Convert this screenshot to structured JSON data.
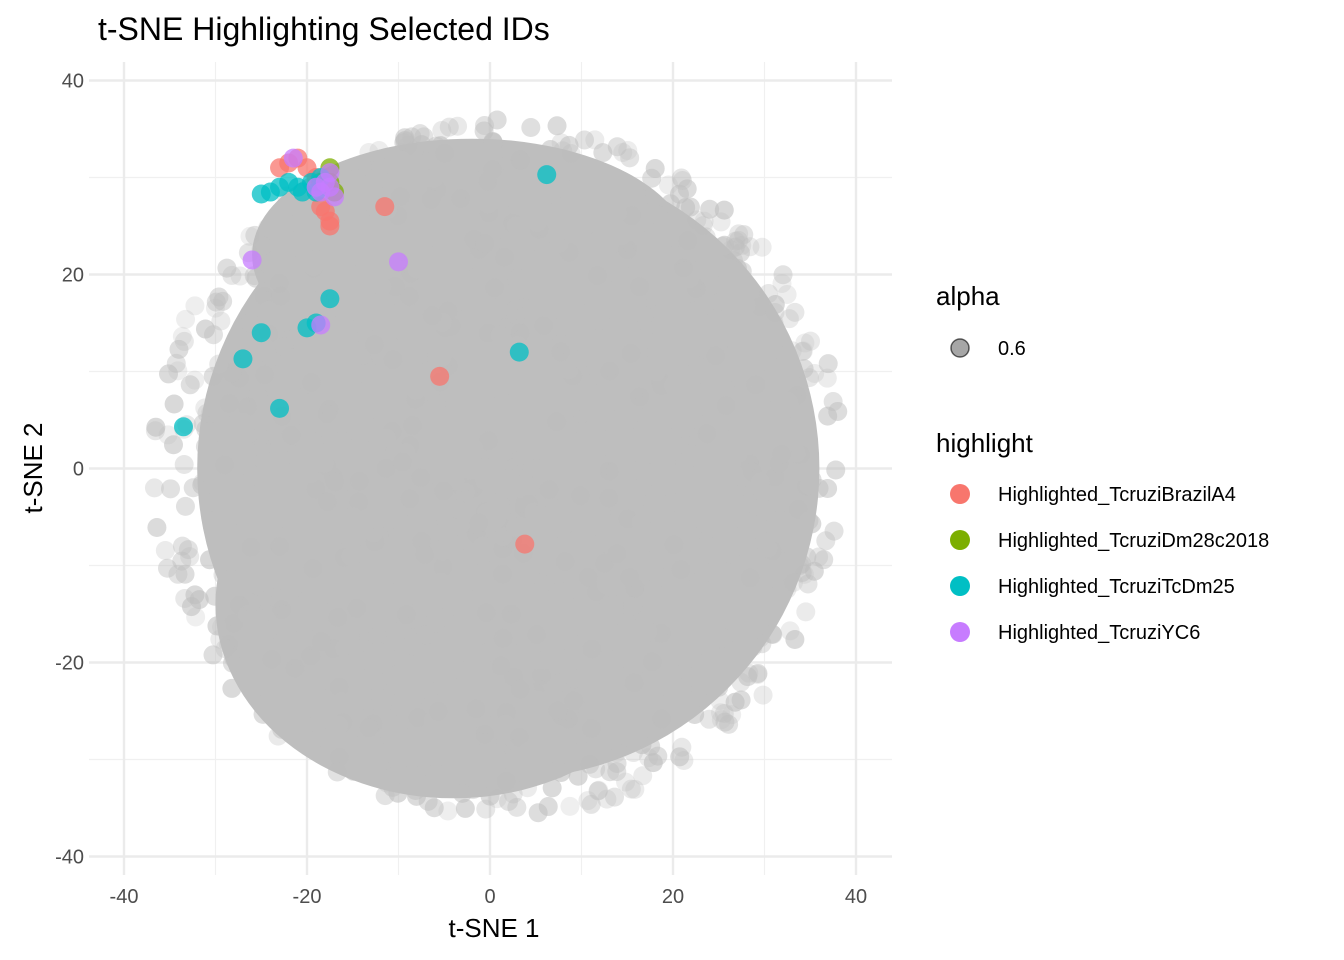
{
  "chart_data": {
    "type": "scatter",
    "title": "t-SNE Highlighting Selected IDs",
    "xlabel": "t-SNE 1",
    "ylabel": "t-SNE 2",
    "xlim": [
      -40,
      40
    ],
    "ylim": [
      -40,
      40
    ],
    "x_ticks": [
      -40,
      -20,
      0,
      20,
      40
    ],
    "y_ticks": [
      -40,
      -20,
      0,
      20,
      40
    ],
    "x_tick_labels": [
      "-40",
      "-20",
      "0",
      "20",
      "40"
    ],
    "y_tick_labels": [
      "-40",
      "-20",
      "0",
      "20",
      "40"
    ],
    "grid": true,
    "legend_position": "right",
    "background_cloud": {
      "color": "#bebebe",
      "alpha": 0.6,
      "approx_extent": {
        "x": [
          -38,
          40
        ],
        "y": [
          -38,
          38
        ]
      }
    },
    "legend": {
      "alpha": {
        "title": "alpha",
        "entries": [
          "0.6"
        ]
      },
      "highlight": {
        "title": "highlight",
        "entries": [
          {
            "label": "Highlighted_TcruziBrazilA4",
            "color": "#F8766D"
          },
          {
            "label": "Highlighted_TcruziDm28c2018",
            "color": "#7CAE00"
          },
          {
            "label": "Highlighted_TcruziTcDm25",
            "color": "#00BFC4"
          },
          {
            "label": "Highlighted_TcruziYC6",
            "color": "#C77CFF"
          }
        ]
      }
    },
    "series": [
      {
        "name": "Highlighted_TcruziBrazilA4",
        "color": "#F8766D",
        "points": [
          [
            -23,
            31
          ],
          [
            -22,
            31.5
          ],
          [
            -21,
            32
          ],
          [
            -20,
            31
          ],
          [
            -19,
            30
          ],
          [
            -18.5,
            27
          ],
          [
            -18,
            26.5
          ],
          [
            -17.5,
            25.5
          ],
          [
            -17.5,
            25
          ],
          [
            -11.5,
            27
          ],
          [
            -5.5,
            9.5
          ],
          [
            3.8,
            -7.8
          ]
        ]
      },
      {
        "name": "Highlighted_TcruziDm28c2018",
        "color": "#7CAE00",
        "points": [
          [
            -17.5,
            31
          ],
          [
            -18.5,
            29.5
          ],
          [
            -17.5,
            29.5
          ],
          [
            -17,
            28.5
          ]
        ]
      },
      {
        "name": "Highlighted_TcruziTcDm25",
        "color": "#00BFC4",
        "points": [
          [
            -25,
            28.3
          ],
          [
            -24,
            28.5
          ],
          [
            -23,
            29
          ],
          [
            -22,
            29.5
          ],
          [
            -21,
            29
          ],
          [
            -20.5,
            28.5
          ],
          [
            -19.5,
            29.5
          ],
          [
            -19,
            28.5
          ],
          [
            -18.5,
            30
          ],
          [
            6.2,
            30.3
          ],
          [
            -17.5,
            17.5
          ],
          [
            -19,
            15
          ],
          [
            -20,
            14.5
          ],
          [
            -25,
            14
          ],
          [
            -27,
            11.3
          ],
          [
            -23,
            6.2
          ],
          [
            -33.5,
            4.3
          ],
          [
            3.2,
            12
          ]
        ]
      },
      {
        "name": "Highlighted_TcruziYC6",
        "color": "#C77CFF",
        "points": [
          [
            -21.5,
            32
          ],
          [
            -17.5,
            30.5
          ],
          [
            -18,
            29.5
          ],
          [
            -19,
            29
          ],
          [
            -17.5,
            29
          ],
          [
            -18.5,
            28.5
          ],
          [
            -17,
            28
          ],
          [
            -26,
            21.5
          ],
          [
            -10,
            21.3
          ],
          [
            -18.5,
            14.8
          ]
        ]
      }
    ]
  }
}
